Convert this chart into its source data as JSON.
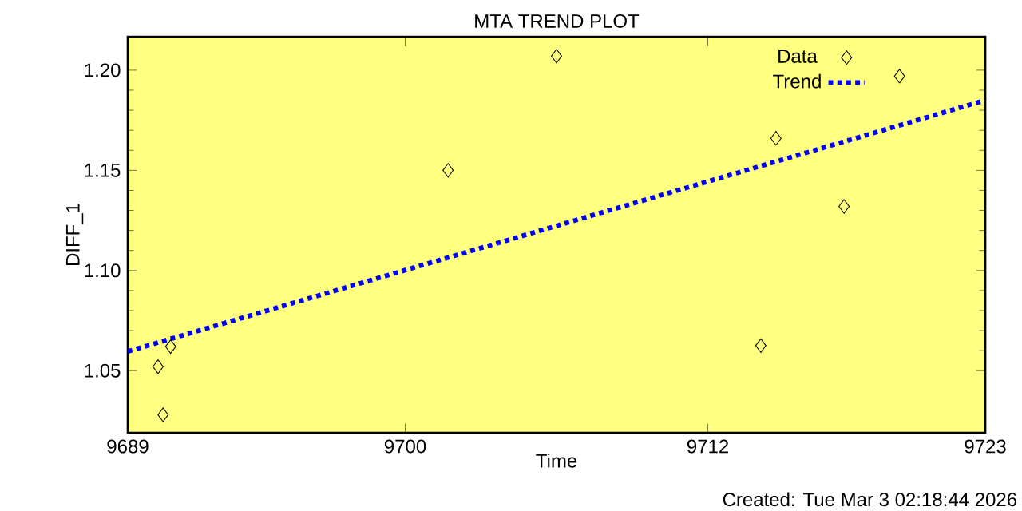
{
  "chart_data": {
    "type": "scatter",
    "title": "MTA TREND PLOT",
    "xlabel": "Time",
    "ylabel": "DIFF_1",
    "xlim": [
      9689,
      9723
    ],
    "xticks": [
      9689,
      9700,
      9712,
      9723
    ],
    "ylim": [
      1.019,
      1.2167
    ],
    "yticks": [
      {
        "value": 1.05,
        "label": "1.05"
      },
      {
        "value": 1.1,
        "label": "1.10"
      },
      {
        "value": 1.15,
        "label": "1.15"
      },
      {
        "value": 1.2,
        "label": "1.20"
      }
    ],
    "series": [
      {
        "name": "Data",
        "color": "#000000",
        "marker": "diamond",
        "x": [
          9690.2,
          9690.4,
          9690.7,
          9701.7,
          9706.0,
          9714.1,
          9714.7,
          9717.4,
          9719.6
        ],
        "values": [
          1.052,
          1.028,
          1.062,
          1.15,
          1.207,
          1.0625,
          1.166,
          1.132,
          1.197
        ]
      },
      {
        "name": "Trend",
        "type": "line",
        "color": "#0000ff",
        "line_style": "dotted",
        "x": [
          9689,
          9723
        ],
        "values": [
          1.0596,
          1.185
        ]
      }
    ],
    "legend": "top right",
    "grid": false,
    "annotations": [
      "Created: Tue Mar  3 02:18:44 2026"
    ]
  }
}
